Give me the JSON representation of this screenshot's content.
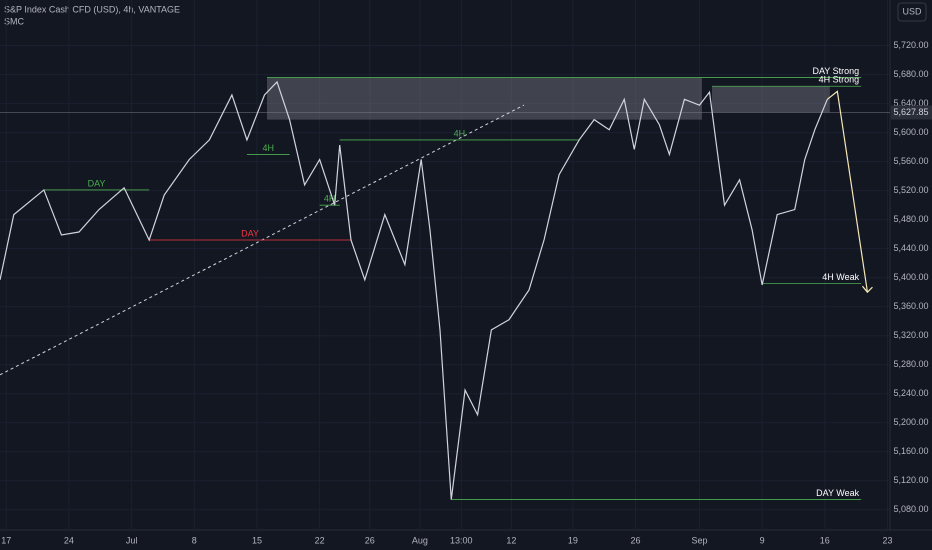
{
  "header": {
    "symbol": "S&P Index Cash CFD (USD), 4h, VANTAGE",
    "indicator": "SMC",
    "currency": "USD"
  },
  "chart_data": {
    "type": "line",
    "series": [
      {
        "color": "#d1d4dc",
        "x": [
          -0.5,
          0.6,
          3.0,
          4.4,
          5.8,
          7.4,
          9.4,
          11.4,
          12.6,
          14.6,
          16.2,
          18.0,
          19.2,
          20.6,
          21.6,
          22.6,
          23.8,
          25.0,
          26.2,
          26.6,
          27.5,
          28.6,
          30.2,
          31.8,
          33.1,
          33.8,
          34.6,
          35.5,
          36.6,
          37.6,
          38.7,
          40.1,
          41.7,
          42.9,
          44.1,
          45.7,
          46.9,
          48.1,
          49.3,
          50.1,
          50.9,
          52.1,
          52.9,
          54.1,
          55.3,
          56.1,
          56.7,
          57.3,
          58.5,
          59.5,
          60.3,
          61.5,
          62.9,
          63.7,
          64.5,
          65.5
        ],
        "values": [
          5397,
          5487,
          5521,
          5459,
          5463,
          5494,
          5524,
          5452,
          5514,
          5563,
          5590,
          5652,
          5590,
          5652,
          5670,
          5618,
          5528,
          5563,
          5500,
          5583,
          5452,
          5397,
          5487,
          5418,
          5563,
          5466,
          5328,
          5094,
          5245,
          5211,
          5328,
          5342,
          5383,
          5452,
          5542,
          5590,
          5618,
          5604,
          5646,
          5577,
          5646,
          5611,
          5570,
          5646,
          5638,
          5656,
          5577,
          5500,
          5535,
          5466,
          5390,
          5487,
          5494,
          5563,
          5604,
          5646
        ]
      }
    ],
    "xlim": [
      -0.5,
      70.5
    ],
    "xticks": [
      {
        "value": 0,
        "label": "17"
      },
      {
        "value": 5,
        "label": "24"
      },
      {
        "value": 10,
        "label": "Jul"
      },
      {
        "value": 15,
        "label": "8"
      },
      {
        "value": 20,
        "label": "15"
      },
      {
        "value": 25,
        "label": "22"
      },
      {
        "value": 29,
        "label": "26"
      },
      {
        "value": 33,
        "label": "Aug"
      },
      {
        "value": 36.3,
        "label": "13:00"
      },
      {
        "value": 40.3,
        "label": "12"
      },
      {
        "value": 45.2,
        "label": "19"
      },
      {
        "value": 50.2,
        "label": "26"
      },
      {
        "value": 55.3,
        "label": "Sep"
      },
      {
        "value": 60.3,
        "label": "9"
      },
      {
        "value": 65.3,
        "label": "16"
      },
      {
        "value": 70.3,
        "label": "23"
      }
    ],
    "ylim": [
      5052,
      5783
    ],
    "yticks": [
      {
        "value": 5080,
        "label": "5,080.00"
      },
      {
        "value": 5120,
        "label": "5,120.00"
      },
      {
        "value": 5160,
        "label": "5,160.00"
      },
      {
        "value": 5200,
        "label": "5,200.00"
      },
      {
        "value": 5240,
        "label": "5,240.00"
      },
      {
        "value": 5280,
        "label": "5,280.00"
      },
      {
        "value": 5320,
        "label": "5,320.00"
      },
      {
        "value": 5360,
        "label": "5,360.00"
      },
      {
        "value": 5400,
        "label": "5,400.00"
      },
      {
        "value": 5440,
        "label": "5,440.00"
      },
      {
        "value": 5480,
        "label": "5,480.00"
      },
      {
        "value": 5520,
        "label": "5,520.00"
      },
      {
        "value": 5560,
        "label": "5,560.00"
      },
      {
        "value": 5600,
        "label": "5,600.00"
      },
      {
        "value": 5640,
        "label": "5,640.00"
      },
      {
        "value": 5680,
        "label": "5,680.00"
      },
      {
        "value": 5720,
        "label": "5,720.00"
      }
    ],
    "last_price": 5627.85,
    "last_price_label": "5,627.85",
    "levels": [
      {
        "label": "DAY",
        "value": 5521,
        "x0": 3.0,
        "x1": 11.4,
        "color": "#4caf50"
      },
      {
        "label": "DAY",
        "value": 5452,
        "x0": 11.4,
        "x1": 27.5,
        "color": "#f23645"
      },
      {
        "label": "4H",
        "value": 5570,
        "x0": 19.2,
        "x1": 22.6,
        "color": "#4caf50"
      },
      {
        "label": "4H",
        "value": 5500,
        "x0": 25.0,
        "x1": 26.6,
        "color": "#4caf50"
      },
      {
        "label": "4H",
        "value": 5590,
        "x0": 26.6,
        "x1": 45.7,
        "color": "#4caf50"
      },
      {
        "label": "DAY Strong",
        "value": 5676,
        "x0": 20.8,
        "x1": 68.2,
        "color": "#4caf50"
      },
      {
        "label": "4H Strong",
        "value": 5664,
        "x0": 56.3,
        "x1": 68.2,
        "color": "#4caf50"
      },
      {
        "label": "4H Weak",
        "value": 5392,
        "x0": 60.3,
        "x1": 68.2,
        "color": "#4caf50"
      },
      {
        "label": "DAY Weak",
        "value": 5094,
        "x0": 35.5,
        "x1": 68.2,
        "color": "#4caf50"
      }
    ],
    "zones": [
      {
        "x0": 20.8,
        "x1": 55.5,
        "top": 5676,
        "bottom": 5618
      },
      {
        "x0": 56.3,
        "x1": 65.7,
        "top": 5664,
        "bottom": 5628
      }
    ],
    "trendline": {
      "x": [
        -0.5,
        41.3
      ],
      "values": [
        5266,
        5638
      ]
    },
    "projection": {
      "x": [
        65.5,
        66.3,
        68.7
      ],
      "values": [
        5646,
        5657,
        5380
      ]
    }
  }
}
